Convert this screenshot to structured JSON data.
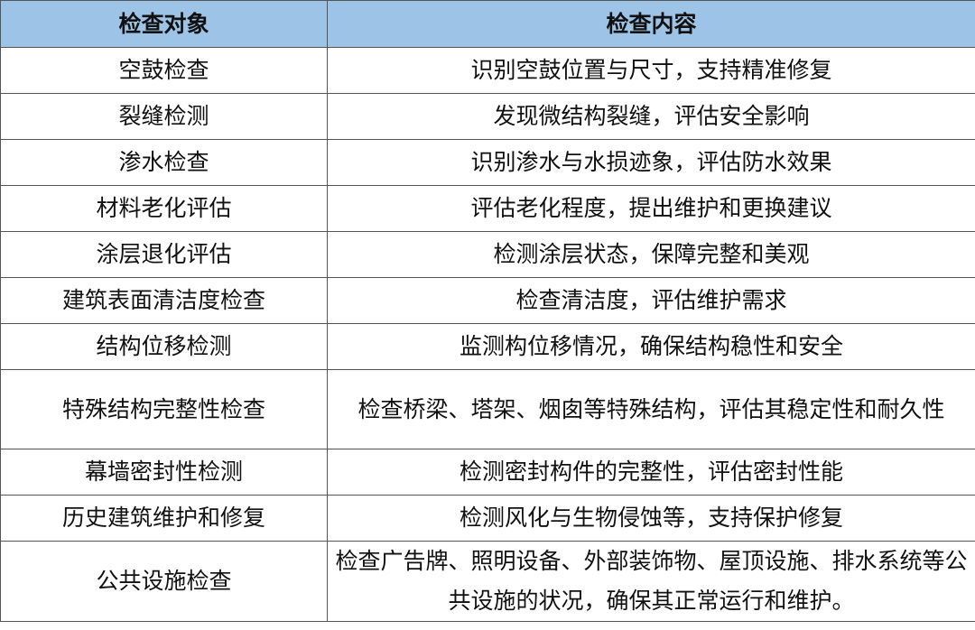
{
  "colors": {
    "header_bg": "#9DC3E6",
    "border": "#555555"
  },
  "table": {
    "headers": [
      "检查对象",
      "检查内容"
    ],
    "rows": [
      [
        "空鼓检查",
        "识别空鼓位置与尺寸，支持精准修复"
      ],
      [
        "裂缝检测",
        "发现微结构裂缝，评估安全影响"
      ],
      [
        "渗水检查",
        "识别渗水与水损迹象，评估防水效果"
      ],
      [
        "材料老化评估",
        "评估老化程度，提出维护和更换建议"
      ],
      [
        "涂层退化评估",
        "检测涂层状态，保障完整和美观"
      ],
      [
        "建筑表面清洁度检查",
        "检查清洁度，评估维护需求"
      ],
      [
        "结构位移检测",
        "监测构位移情况，确保结构稳性和安全"
      ],
      [
        "特殊结构完整性检查",
        "检查桥梁、塔架、烟囱等特殊结构，评估其稳定性和耐久性"
      ],
      [
        "幕墙密封性检测",
        "检测密封构件的完整性，评估密封性能"
      ],
      [
        "历史建筑维护和修复",
        "检测风化与生物侵蚀等，支持保护修复"
      ],
      [
        "公共设施检查",
        "检查广告牌、照明设备、外部装饰物、屋顶设施、排水系统等公共设施的状况，确保其正常运行和维护。"
      ]
    ]
  }
}
